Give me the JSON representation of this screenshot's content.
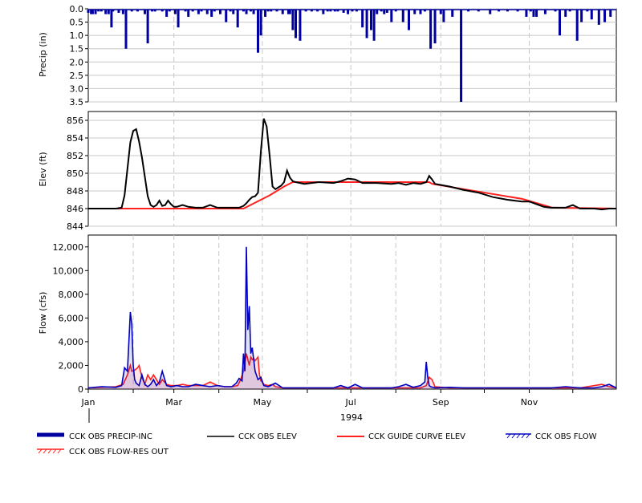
{
  "colors": {
    "precip": "#0000a0",
    "elev": "#000000",
    "guide": "#ff2020",
    "flow": "#0000c0",
    "flow_res": "#ff2020",
    "grid": "#c8c8c8",
    "frame": "#000000"
  },
  "chart_data": [
    {
      "type": "bar",
      "ylabel": "Precip (in)",
      "ylim": [
        0,
        3.5
      ],
      "inverted_y": true,
      "yticks": [
        "0.0",
        "0.5",
        "1.0",
        "1.5",
        "2.0",
        "2.5",
        "3.0",
        "3.5"
      ],
      "x_unit": "day of year 1994",
      "x": [
        1,
        3,
        4,
        6,
        8,
        10,
        13,
        15,
        17,
        18,
        22,
        25,
        27,
        31,
        35,
        40,
        42,
        45,
        47,
        52,
        55,
        57,
        61,
        63,
        68,
        70,
        73,
        77,
        79,
        83,
        86,
        88,
        92,
        96,
        99,
        101,
        104,
        108,
        110,
        113,
        115,
        118,
        120,
        123,
        125,
        127,
        131,
        135,
        139,
        140,
        142,
        144,
        147,
        151,
        155,
        159,
        163,
        166,
        168,
        171,
        173,
        177,
        180,
        183,
        186,
        190,
        193,
        196,
        198,
        200,
        203,
        205,
        207,
        210,
        213,
        218,
        222,
        226,
        230,
        233,
        237,
        240,
        244,
        246,
        252,
        258,
        263,
        270,
        278,
        284,
        290,
        297,
        303,
        306,
        308,
        310,
        316,
        323,
        326,
        330,
        333,
        338,
        341,
        345,
        348,
        353,
        357,
        361
      ],
      "values": [
        0.15,
        0.2,
        0.2,
        0.2,
        0.1,
        0.1,
        0.2,
        0.2,
        0.7,
        0.1,
        0.15,
        0.2,
        1.5,
        0.1,
        0.1,
        0.2,
        1.3,
        0.1,
        0.1,
        0.1,
        0.3,
        0.1,
        0.2,
        0.7,
        0.1,
        0.3,
        0.1,
        0.2,
        0.1,
        0.2,
        0.3,
        0.1,
        0.2,
        0.5,
        0.1,
        0.2,
        0.7,
        0.1,
        0.2,
        0.1,
        0.2,
        1.65,
        1.0,
        0.3,
        0.1,
        0.1,
        0.1,
        0.2,
        0.2,
        0.2,
        0.8,
        1.1,
        1.2,
        0.1,
        0.1,
        0.1,
        0.2,
        0.1,
        0.1,
        0.1,
        0.1,
        0.15,
        0.2,
        0.1,
        0.1,
        0.7,
        1.1,
        0.8,
        1.2,
        0.2,
        0.1,
        0.2,
        0.15,
        0.5,
        0.1,
        0.5,
        0.8,
        0.2,
        0.2,
        0.1,
        1.5,
        1.3,
        0.2,
        0.5,
        0.3,
        3.5,
        0.1,
        0.1,
        0.2,
        0.1,
        0.1,
        0.1,
        0.3,
        0.1,
        0.3,
        0.3,
        0.2,
        0.1,
        1.0,
        0.3,
        0.1,
        1.2,
        0.5,
        0.1,
        0.4,
        0.6,
        0.5,
        0.3
      ],
      "series_name": "CCK OBS PRECIP-INC"
    },
    {
      "type": "line",
      "ylabel": "Elev (ft)",
      "ylim": [
        844,
        857
      ],
      "yticks": [
        "844",
        "846",
        "848",
        "850",
        "852",
        "854",
        "856"
      ],
      "x_unit": "day of year 1994",
      "series": [
        {
          "name": "CCK OBS ELEV",
          "x": [
            1,
            10,
            20,
            24,
            26,
            28,
            30,
            32,
            34,
            36,
            38,
            40,
            42,
            44,
            46,
            48,
            50,
            52,
            54,
            56,
            58,
            60,
            62,
            64,
            66,
            70,
            75,
            80,
            85,
            90,
            95,
            100,
            105,
            108,
            110,
            112,
            114,
            116,
            118,
            120,
            122,
            124,
            126,
            128,
            130,
            132,
            134,
            136,
            138,
            140,
            142,
            144,
            150,
            160,
            170,
            175,
            180,
            185,
            190,
            200,
            210,
            215,
            220,
            225,
            230,
            234,
            236,
            238,
            240,
            250,
            260,
            270,
            280,
            290,
            300,
            305,
            310,
            315,
            320,
            325,
            330,
            335,
            340,
            345,
            350,
            355,
            360,
            365
          ],
          "values": [
            846.0,
            846.0,
            846.0,
            846.1,
            847.5,
            850.5,
            853.5,
            854.8,
            855.0,
            853.6,
            851.8,
            849.6,
            847.4,
            846.4,
            846.2,
            846.4,
            846.9,
            846.3,
            846.4,
            846.9,
            846.5,
            846.2,
            846.2,
            846.3,
            846.4,
            846.2,
            846.1,
            846.1,
            846.4,
            846.1,
            846.1,
            846.1,
            846.1,
            846.3,
            846.6,
            847.0,
            847.3,
            847.4,
            847.8,
            852.5,
            856.2,
            855.3,
            852.0,
            848.5,
            848.2,
            848.4,
            848.6,
            849.0,
            850.3,
            849.5,
            849.1,
            849.0,
            848.8,
            849.0,
            848.9,
            849.1,
            849.4,
            849.3,
            848.9,
            848.9,
            848.8,
            848.9,
            848.7,
            848.9,
            848.8,
            849.0,
            849.7,
            849.3,
            848.8,
            848.5,
            848.1,
            847.8,
            847.3,
            847.0,
            846.8,
            846.8,
            846.5,
            846.2,
            846.1,
            846.1,
            846.1,
            846.4,
            846.0,
            846.0,
            846.0,
            845.9,
            846.0,
            846.0
          ]
        },
        {
          "name": "CCK GUIDE CURVE ELEV",
          "x": [
            1,
            90,
            108,
            126,
            136,
            142,
            236,
            238,
            300,
            321,
            365
          ],
          "values": [
            846.0,
            846.0,
            846.0,
            847.5,
            848.5,
            849.0,
            849.0,
            848.8,
            847.1,
            846.1,
            846.0
          ]
        }
      ]
    },
    {
      "type": "line",
      "ylabel": "Flow (cfs)",
      "ylim": [
        0,
        13000
      ],
      "yticks": [
        "0",
        "2,000",
        "4,000",
        "6,000",
        "8,000",
        "10,000",
        "12,000"
      ],
      "x_unit": "day of year 1994",
      "xticks": [
        "Jan",
        "Mar",
        "May",
        "Jul",
        "Sep",
        "Nov"
      ],
      "xlabel": "1994",
      "series": [
        {
          "name": "CCK OBS FLOW",
          "x": [
            1,
            10,
            20,
            24,
            26,
            28,
            29,
            30,
            31,
            32,
            33,
            34,
            36,
            38,
            40,
            42,
            44,
            46,
            48,
            50,
            52,
            55,
            58,
            62,
            66,
            70,
            75,
            80,
            85,
            90,
            95,
            100,
            103,
            105,
            107,
            108,
            109,
            110,
            111,
            112,
            113,
            114,
            115,
            116,
            118,
            120,
            122,
            125,
            130,
            135,
            140,
            145,
            150,
            160,
            170,
            175,
            180,
            185,
            190,
            200,
            210,
            215,
            220,
            225,
            230,
            233,
            234,
            235,
            236,
            237,
            240,
            250,
            260,
            270,
            280,
            290,
            300,
            310,
            320,
            330,
            340,
            350,
            355,
            360,
            365
          ],
          "values": [
            100,
            200,
            150,
            300,
            1800,
            1500,
            4000,
            6500,
            5500,
            2000,
            800,
            500,
            300,
            1200,
            400,
            200,
            400,
            800,
            300,
            600,
            1500,
            300,
            200,
            300,
            200,
            200,
            400,
            300,
            200,
            300,
            200,
            200,
            500,
            900,
            700,
            3000,
            1500,
            12000,
            5000,
            7000,
            3000,
            3500,
            2500,
            1500,
            800,
            1000,
            300,
            200,
            500,
            100,
            100,
            100,
            100,
            100,
            100,
            300,
            100,
            400,
            100,
            100,
            100,
            200,
            400,
            150,
            300,
            600,
            2300,
            1000,
            300,
            200,
            100,
            150,
            100,
            100,
            100,
            100,
            100,
            100,
            100,
            200,
            100,
            100,
            200,
            400,
            100
          ]
        },
        {
          "name": "CCK OBS FLOW-RES OUT",
          "x": [
            1,
            20,
            25,
            28,
            30,
            31,
            33,
            35,
            36,
            38,
            40,
            42,
            44,
            46,
            50,
            52,
            55,
            58,
            62,
            66,
            70,
            75,
            80,
            85,
            90,
            95,
            100,
            104,
            106,
            108,
            110,
            112,
            113,
            114,
            115,
            116,
            118,
            119,
            120,
            121,
            122,
            125,
            128,
            130,
            135,
            140,
            150,
            170,
            190,
            210,
            230,
            234,
            236,
            238,
            240,
            250,
            260,
            270,
            300,
            320,
            340,
            355,
            360,
            365
          ],
          "values": [
            100,
            200,
            400,
            1200,
            2000,
            1500,
            1600,
            1800,
            2000,
            1000,
            400,
            1200,
            800,
            1200,
            400,
            800,
            400,
            300,
            300,
            400,
            300,
            300,
            300,
            600,
            300,
            200,
            200,
            300,
            800,
            1500,
            3000,
            2000,
            2700,
            2500,
            2600,
            2400,
            2700,
            1200,
            700,
            600,
            400,
            300,
            400,
            200,
            100,
            100,
            100,
            100,
            100,
            100,
            100,
            300,
            1000,
            800,
            200,
            100,
            100,
            100,
            100,
            100,
            100,
            400,
            200,
            100
          ]
        }
      ]
    }
  ],
  "legend": [
    {
      "label": "CCK OBS PRECIP-INC",
      "style": "thick-bar"
    },
    {
      "label": "CCK OBS ELEV",
      "style": "line-black"
    },
    {
      "label": "CCK GUIDE CURVE ELEV",
      "style": "line-red"
    },
    {
      "label": "CCK OBS FLOW",
      "style": "hatch-blue"
    },
    {
      "label": "CCK OBS FLOW-RES OUT",
      "style": "hatch-red"
    }
  ]
}
